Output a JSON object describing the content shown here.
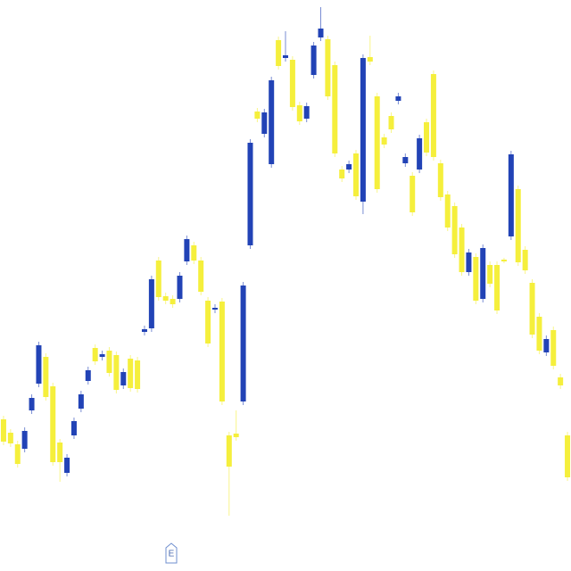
{
  "chart_data": {
    "type": "candlestick",
    "up_color": "#2243b6",
    "down_color": "#f5ef3c",
    "ylim": [
      0,
      640
    ],
    "event_marker": "E",
    "open": [
      170,
      155,
      142,
      137,
      180,
      210,
      240,
      207,
      144,
      110,
      152,
      182,
      213,
      250,
      240,
      247,
      242,
      208,
      238,
      236,
      268,
      272,
      348,
      308,
      305,
      305,
      347,
      365,
      348,
      303,
      293,
      302,
      152,
      154,
      190,
      365,
      515,
      490,
      456,
      595,
      575,
      573,
      522,
      507,
      556,
      598,
      596,
      567,
      450,
      450,
      468,
      414,
      576,
      532,
      486,
      510,
      527,
      457,
      443,
      450,
      503,
      557,
      457,
      422,
      409,
      385,
      335,
      352,
      305,
      343,
      343,
      349,
      375,
      428,
      360,
      323,
      285,
      245,
      270,
      217,
      152
    ],
    "high": [
      174,
      159,
      146,
      161,
      198,
      257,
      244,
      211,
      148,
      131,
      172,
      202,
      229,
      254,
      247,
      251,
      246,
      227,
      242,
      240,
      275,
      331,
      352,
      312,
      309,
      335,
      376,
      369,
      352,
      307,
      299,
      306,
      156,
      180,
      324,
      484,
      519,
      518,
      554,
      599,
      605,
      577,
      526,
      525,
      593,
      632,
      600,
      571,
      454,
      460,
      472,
      579,
      600,
      536,
      490,
      514,
      536,
      468,
      447,
      489,
      507,
      561,
      461,
      426,
      413,
      389,
      361,
      356,
      366,
      347,
      347,
      351,
      471,
      432,
      364,
      327,
      289,
      264,
      274,
      221,
      156
    ],
    "low": [
      141,
      139,
      116,
      133,
      176,
      206,
      191,
      118,
      100,
      106,
      148,
      178,
      209,
      231,
      236,
      218,
      199,
      204,
      201,
      200,
      264,
      268,
      303,
      299,
      295,
      301,
      343,
      344,
      309,
      251,
      289,
      186,
      62,
      146,
      186,
      361,
      503,
      486,
      452,
      562,
      571,
      516,
      500,
      503,
      552,
      594,
      528,
      464,
      436,
      446,
      416,
      400,
      567,
      424,
      474,
      491,
      523,
      453,
      398,
      446,
      465,
      460,
      415,
      381,
      351,
      331,
      331,
      299,
      301,
      318,
      288,
      345,
      371,
      342,
      333,
      261,
      243,
      241,
      226,
      204,
      101
    ],
    "close": [
      145,
      143,
      120,
      157,
      194,
      253,
      195,
      122,
      122,
      127,
      168,
      198,
      225,
      235,
      243,
      222,
      203,
      223,
      205,
      204,
      271,
      327,
      307,
      303,
      299,
      331,
      372,
      348,
      313,
      255,
      295,
      190,
      117,
      150,
      320,
      480,
      507,
      514,
      550,
      566,
      578,
      520,
      504,
      521,
      589,
      608,
      532,
      468,
      440,
      456,
      420,
      575,
      571,
      428,
      478,
      495,
      532,
      464,
      402,
      485,
      469,
      464,
      419,
      385,
      355,
      335,
      357,
      303,
      362,
      322,
      292,
      347,
      467,
      346,
      337,
      265,
      247,
      260,
      230,
      208,
      105
    ]
  }
}
